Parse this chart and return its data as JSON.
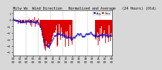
{
  "title": "Milw Wx  Wind Direction   Normalized and Average   (24 Hours) (Old)",
  "bg_color": "#d8d8d8",
  "plot_bg_color": "#ffffff",
  "bar_color": "#dd0000",
  "dot_color": "#0000cc",
  "ylim": [
    -5.5,
    1.5
  ],
  "yticks": [
    1,
    0,
    -1,
    -2,
    -3,
    -4,
    -5
  ],
  "n_points": 144,
  "n_dashes": 8,
  "title_fontsize": 3.8,
  "tick_fontsize": 2.8,
  "legend_fontsize": 2.8
}
